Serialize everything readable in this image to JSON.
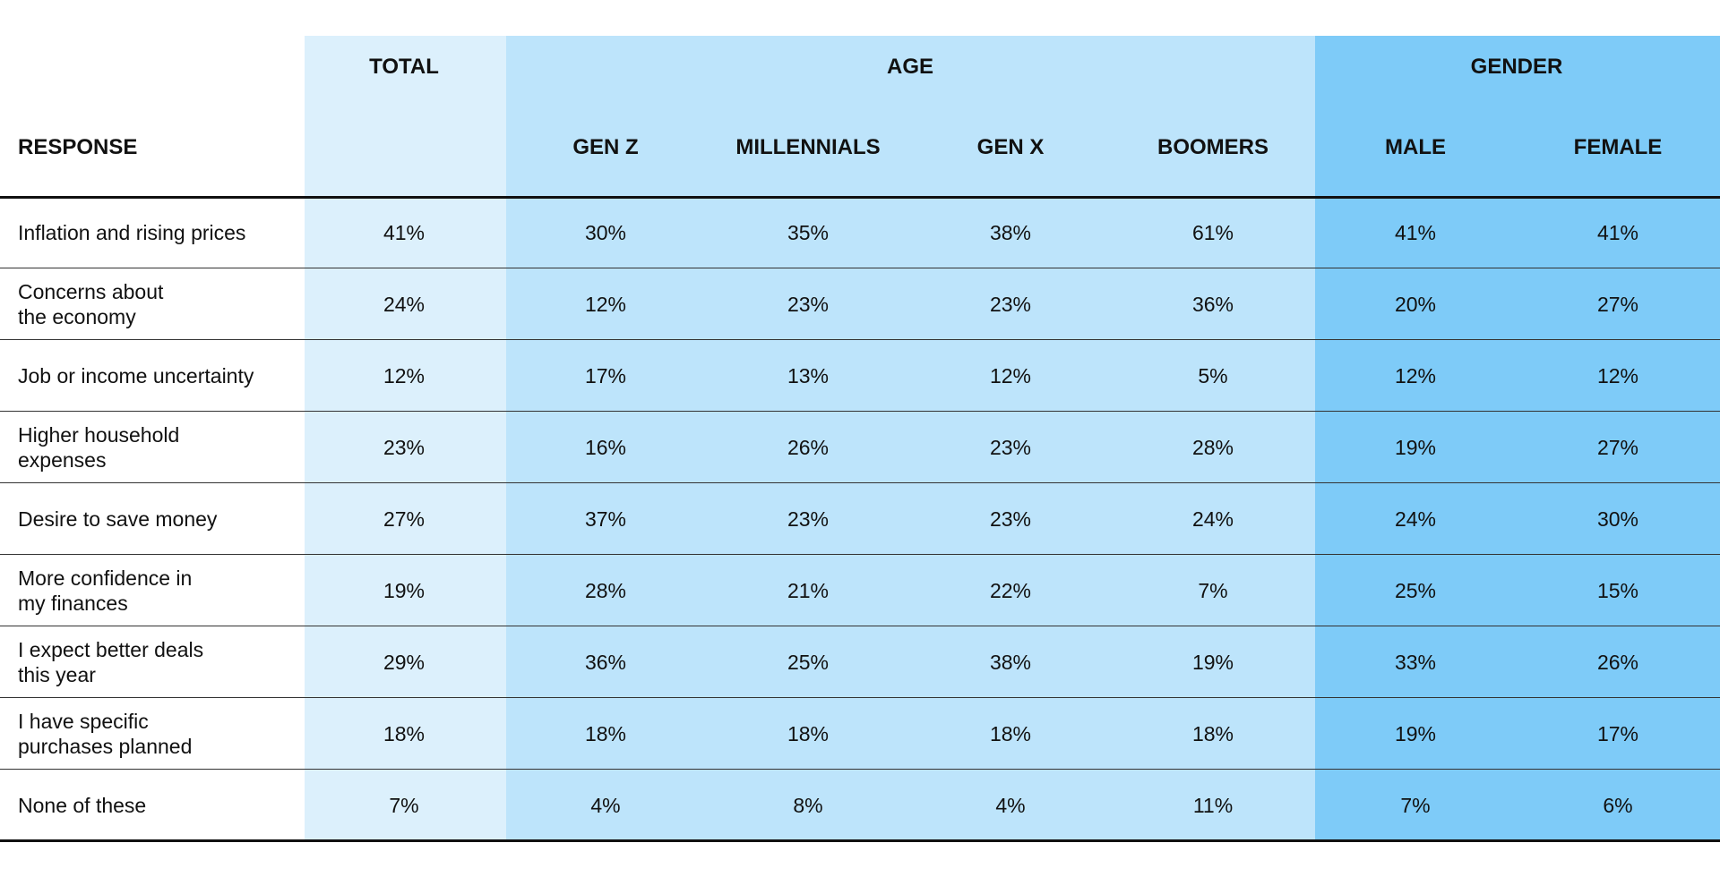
{
  "colors": {
    "total_band": "#dcf0fc",
    "age_band": "#bde4fb",
    "gender_band": "#7ecbf8",
    "rule": "#111111"
  },
  "table": {
    "response_header": "RESPONSE",
    "groups": [
      {
        "label": "TOTAL",
        "key": "total"
      },
      {
        "label": "AGE",
        "key": "age"
      },
      {
        "label": "GENDER",
        "key": "gender"
      }
    ],
    "subheaders": [
      "",
      "GEN Z",
      "MILLENNIALS",
      "GEN X",
      "BOOMERS",
      "MALE",
      "FEMALE"
    ]
  },
  "chart_data": {
    "type": "table",
    "columns": [
      "TOTAL",
      "GEN Z",
      "MILLENNIALS",
      "GEN X",
      "BOOMERS",
      "MALE",
      "FEMALE"
    ],
    "column_groups": [
      {
        "label": "TOTAL",
        "columns": [
          "TOTAL"
        ]
      },
      {
        "label": "AGE",
        "columns": [
          "GEN Z",
          "MILLENNIALS",
          "GEN X",
          "BOOMERS"
        ]
      },
      {
        "label": "GENDER",
        "columns": [
          "MALE",
          "FEMALE"
        ]
      }
    ],
    "rows": [
      {
        "label": "Inflation and rising prices",
        "values": [
          "41%",
          "30%",
          "35%",
          "38%",
          "61%",
          "41%",
          "41%"
        ]
      },
      {
        "label": "Concerns about\nthe economy",
        "values": [
          "24%",
          "12%",
          "23%",
          "23%",
          "36%",
          "20%",
          "27%"
        ]
      },
      {
        "label": "Job or income uncertainty",
        "values": [
          "12%",
          "17%",
          "13%",
          "12%",
          "5%",
          "12%",
          "12%"
        ]
      },
      {
        "label": "Higher household\nexpenses",
        "values": [
          "23%",
          "16%",
          "26%",
          "23%",
          "28%",
          "19%",
          "27%"
        ]
      },
      {
        "label": "Desire to save money",
        "values": [
          "27%",
          "37%",
          "23%",
          "23%",
          "24%",
          "24%",
          "30%"
        ]
      },
      {
        "label": "More confidence in\nmy finances",
        "values": [
          "19%",
          "28%",
          "21%",
          "22%",
          "7%",
          "25%",
          "15%"
        ]
      },
      {
        "label": "I expect better deals\nthis year",
        "values": [
          "29%",
          "36%",
          "25%",
          "38%",
          "19%",
          "33%",
          "26%"
        ]
      },
      {
        "label": "I have specific\npurchases planned",
        "values": [
          "18%",
          "18%",
          "18%",
          "18%",
          "18%",
          "19%",
          "17%"
        ]
      },
      {
        "label": "None of these",
        "values": [
          "7%",
          "4%",
          "8%",
          "4%",
          "11%",
          "7%",
          "6%"
        ]
      }
    ]
  }
}
